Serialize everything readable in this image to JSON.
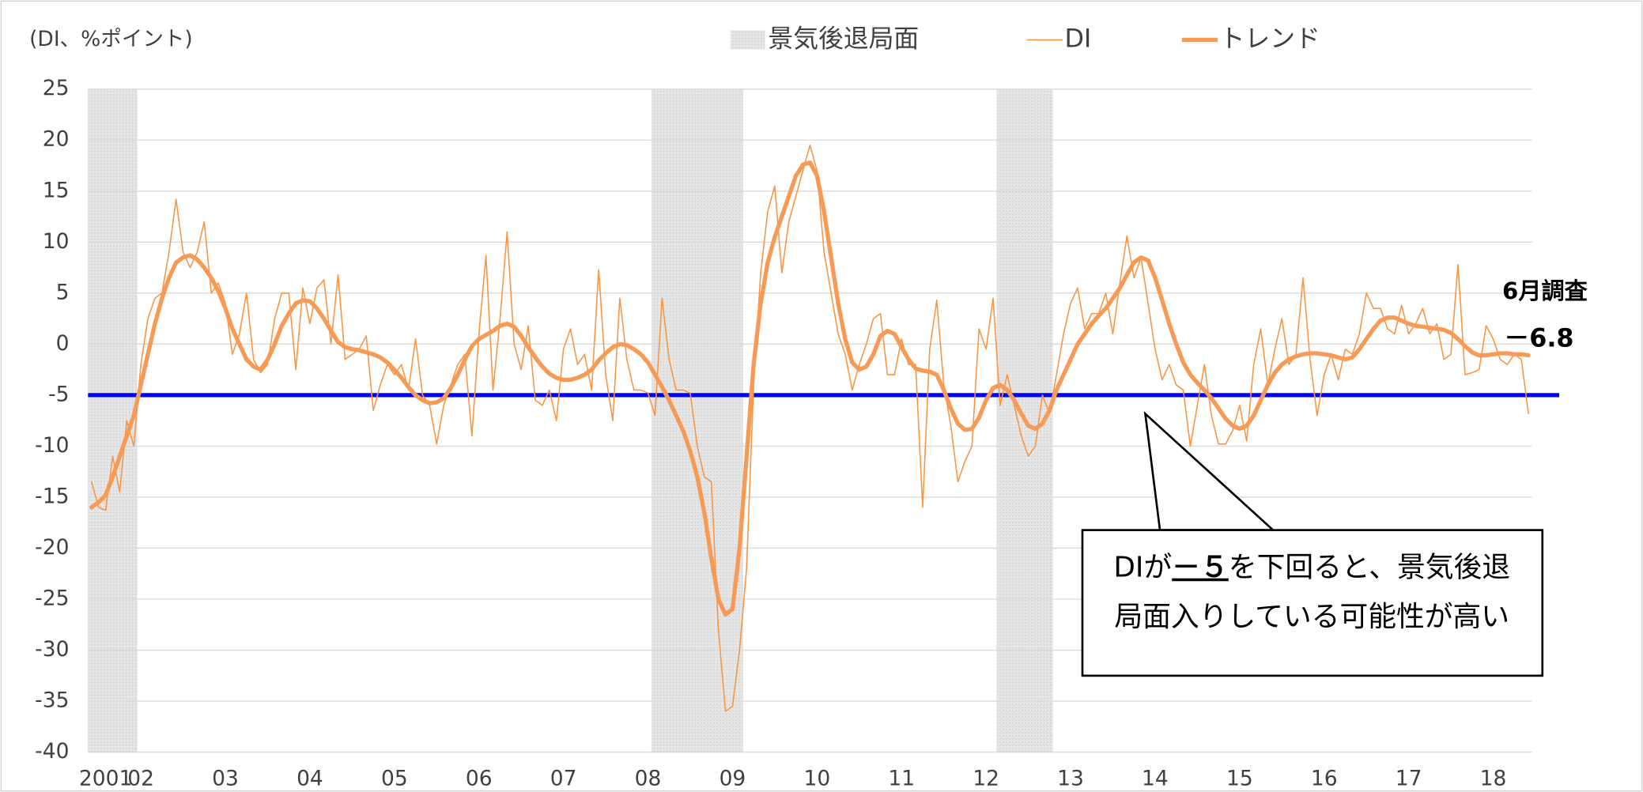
{
  "chart_data": {
    "type": "line",
    "unit_label": "(DI、%ポイント)",
    "categories": [
      null,
      null,
      "2001",
      null,
      null,
      null,
      null,
      "02",
      null,
      null,
      null,
      null,
      null,
      null,
      null,
      null,
      null,
      null,
      null,
      "03",
      null,
      null,
      null,
      null,
      null,
      null,
      null,
      null,
      null,
      null,
      null,
      "04",
      null,
      null,
      null,
      null,
      null,
      null,
      null,
      null,
      null,
      null,
      null,
      "05",
      null,
      null,
      null,
      null,
      null,
      null,
      null,
      null,
      null,
      null,
      null,
      "06",
      null,
      null,
      null,
      null,
      null,
      null,
      null,
      null,
      null,
      null,
      null,
      "07",
      null,
      null,
      null,
      null,
      null,
      null,
      null,
      null,
      null,
      null,
      null,
      "08",
      null,
      null,
      null,
      null,
      null,
      null,
      null,
      null,
      null,
      null,
      null,
      "09",
      null,
      null,
      null,
      null,
      null,
      null,
      null,
      null,
      null,
      null,
      null,
      "10",
      null,
      null,
      null,
      null,
      null,
      null,
      null,
      null,
      null,
      null,
      null,
      "11",
      null,
      null,
      null,
      null,
      null,
      null,
      null,
      null,
      null,
      null,
      null,
      "12",
      null,
      null,
      null,
      null,
      null,
      null,
      null,
      null,
      null,
      null,
      null,
      "13",
      null,
      null,
      null,
      null,
      null,
      null,
      null,
      null,
      null,
      null,
      null,
      "14",
      null,
      null,
      null,
      null,
      null,
      null,
      null,
      null,
      null,
      null,
      null,
      "15",
      null,
      null,
      null,
      null,
      null,
      null,
      null,
      null,
      null,
      null,
      null,
      "16",
      null,
      null,
      null,
      null,
      null,
      null,
      null,
      null,
      null,
      null,
      null,
      "17",
      null,
      null,
      null,
      null,
      null,
      null,
      null,
      null,
      null,
      null,
      null,
      "18",
      null,
      null,
      null,
      null,
      null
    ],
    "series": [
      {
        "name": "DI",
        "color": "#f79646",
        "line_width": 1.2,
        "values": [
          -13.5,
          -16,
          -16.3,
          -11,
          -14.5,
          -7.5,
          -10,
          -2,
          2.5,
          4.5,
          5,
          9,
          14.2,
          9,
          7.5,
          9,
          12,
          5,
          6,
          4,
          -1,
          1,
          5,
          -1.5,
          -2.8,
          -2,
          2.5,
          5,
          5,
          -2.5,
          5.5,
          2,
          5.5,
          6.3,
          0,
          6.8,
          -1.5,
          -1,
          -0.5,
          0.8,
          -6.5,
          -4,
          -2,
          -3,
          -2,
          -4.5,
          0.5,
          -5,
          -6,
          -9.8,
          -6,
          -4,
          -2,
          -1,
          -9,
          1,
          8.7,
          -4.5,
          2.5,
          11,
          0,
          -2.5,
          1.8,
          -5.5,
          -6,
          -4.5,
          -7.5,
          -0.5,
          1.5,
          -2,
          -1,
          -4.5,
          7.3,
          -3,
          -7.5,
          4.5,
          -1.5,
          -4.5,
          -4.5,
          -4.8,
          -7,
          4.5,
          -1.5,
          -4.5,
          -4.5,
          -4.8,
          -10,
          -13,
          -13.5,
          -28,
          -36,
          -35.5,
          -30,
          -22,
          -4,
          7,
          13,
          15.5,
          7,
          12,
          14.5,
          17,
          19.5,
          17,
          9,
          5,
          1,
          -1,
          -4.5,
          -2,
          0,
          2.5,
          3,
          -3,
          -3,
          0.5,
          -2,
          -2,
          -16,
          -0.5,
          4.3,
          -4,
          -8,
          -13.5,
          -11.5,
          -10,
          1.5,
          -0.5,
          4.5,
          -6,
          -3,
          -6,
          -9,
          -11,
          -10,
          -5,
          -6.8,
          -3,
          1,
          4,
          5.5,
          1.5,
          3,
          3,
          5,
          1,
          6,
          10.6,
          6.5,
          8.5,
          4,
          -0.5,
          -3.5,
          -2,
          -4,
          -4.5,
          -10,
          -6,
          -2,
          -7,
          -9.8,
          -9.8,
          -8.5,
          -6,
          -9.5,
          -2,
          1.5,
          -4,
          -0.5,
          2.5,
          -2,
          -1,
          6.5,
          -1.5,
          -7,
          -3,
          -1,
          -3.5,
          -0.5,
          -1,
          1,
          5,
          3.5,
          3.5,
          1.5,
          1,
          3.8,
          1,
          2,
          3.5,
          1,
          2,
          -1.5,
          -1,
          7.8,
          -3,
          -2.8,
          -2.5,
          1.8,
          0.5,
          -1.5,
          -2,
          -1,
          -1.5,
          -6.8
        ]
      },
      {
        "name": "トレンド",
        "color": "#f79a55",
        "line_width": 4,
        "values": [
          -16,
          -15.5,
          -14.8,
          -13,
          -11,
          -9,
          -7,
          -4,
          -1,
          2,
          4.5,
          6.5,
          8,
          8.5,
          8.7,
          8.3,
          7.5,
          6.5,
          5.2,
          3.5,
          1.5,
          0,
          -1.5,
          -2.2,
          -2.5,
          -1.5,
          0,
          1.8,
          3,
          4,
          4.3,
          4.2,
          3.5,
          2.5,
          1.3,
          0.2,
          -0.3,
          -0.5,
          -0.6,
          -0.8,
          -1,
          -1.3,
          -1.8,
          -2.5,
          -3.3,
          -4.2,
          -5,
          -5.5,
          -5.8,
          -5.7,
          -5.3,
          -4.3,
          -3,
          -1.5,
          -0.2,
          0.5,
          0.9,
          1.3,
          1.8,
          2,
          1.7,
          0.8,
          -0.3,
          -1.3,
          -2.2,
          -2.9,
          -3.3,
          -3.5,
          -3.5,
          -3.3,
          -3,
          -2.5,
          -1.6,
          -0.9,
          -0.3,
          0,
          -0.1,
          -0.5,
          -1,
          -1.8,
          -3,
          -4.2,
          -5.5,
          -7,
          -8.5,
          -10.5,
          -13,
          -16.5,
          -21,
          -25,
          -26.5,
          -26,
          -20,
          -11,
          -2,
          4,
          8,
          10.5,
          12.5,
          14.5,
          16.5,
          17.6,
          17.8,
          16.5,
          13,
          8.5,
          4,
          0.5,
          -1.8,
          -2.5,
          -2.2,
          -1,
          0.8,
          1.3,
          1,
          -0.3,
          -1.5,
          -2.4,
          -2.6,
          -2.7,
          -3,
          -4.5,
          -6.3,
          -7.8,
          -8.4,
          -8.3,
          -7.2,
          -5.5,
          -4.3,
          -4,
          -4.5,
          -5.5,
          -6.8,
          -8,
          -8.3,
          -7.8,
          -6.5,
          -4.5,
          -3,
          -1.5,
          0,
          1,
          2,
          2.8,
          3.5,
          4.5,
          5.5,
          6.8,
          8,
          8.5,
          8.2,
          6.5,
          4.3,
          2,
          0,
          -1.8,
          -3,
          -3.8,
          -4.5,
          -5.3,
          -6.3,
          -7.3,
          -8,
          -8.3,
          -8,
          -7,
          -5.5,
          -4,
          -2.8,
          -2,
          -1.5,
          -1.2,
          -1,
          -0.9,
          -0.9,
          -1,
          -1.1,
          -1.3,
          -1.5,
          -1.3,
          -0.5,
          0.5,
          1.5,
          2.3,
          2.6,
          2.6,
          2.3,
          2,
          1.8,
          1.7,
          1.6,
          1.5,
          1.4,
          1.1,
          0.5,
          -0.2,
          -0.8,
          -1.1,
          -1.1,
          -1,
          -0.9,
          -0.9,
          -1,
          -1,
          -1.1
        ]
      }
    ],
    "recession_label": "景気後退局面",
    "recessions": [
      [
        0,
        6
      ],
      [
        80,
        92
      ],
      [
        129,
        136
      ]
    ],
    "reference_line": {
      "value": -5,
      "color": "#0000ff"
    },
    "end_label": {
      "title": "6月調査",
      "text": "－6.8"
    },
    "callout": [
      "DIが",
      "－５",
      "を下回ると、景気後退",
      "局面入りしている可能性が高い"
    ],
    "ylim": [
      -40,
      25
    ],
    "yticks": [
      -40,
      -35,
      -30,
      -25,
      -20,
      -15,
      -10,
      -5,
      0,
      5,
      10,
      15,
      20,
      25
    ],
    "grid": true
  }
}
